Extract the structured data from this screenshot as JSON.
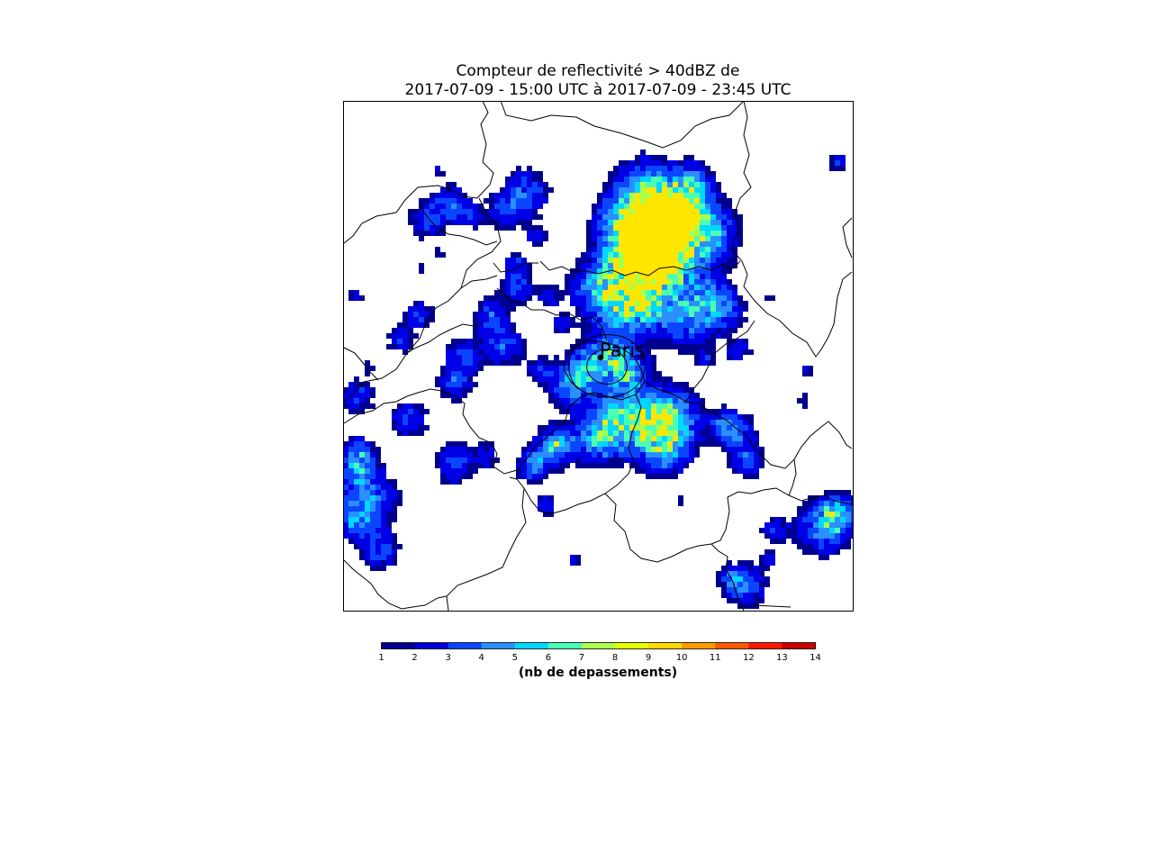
{
  "figure": {
    "title_line_1": "Compteur de reflectivité > 40dBZ de",
    "title_line_2": "2017-07-09 - 15:00 UTC à 2017-07-09 - 23:45 UTC"
  },
  "map": {
    "city_label": "Paris",
    "cell_colors": [
      "#00008f",
      "#0000e6",
      "#0a46ff",
      "#2a8fff",
      "#00d8ff",
      "#4affb4",
      "#aaff4a",
      "#ffe600"
    ]
  },
  "colorbar": {
    "label": "(nb de depassements)",
    "ticks": [
      "1",
      "2",
      "3",
      "4",
      "5",
      "6",
      "7",
      "8",
      "9",
      "10",
      "11",
      "12",
      "13",
      "14"
    ],
    "colors": [
      "#00008f",
      "#0000d9",
      "#0a46ff",
      "#2a8fff",
      "#00d8ff",
      "#4affb4",
      "#aaff4a",
      "#e6ff00",
      "#ffd800",
      "#ff9a00",
      "#ff5a00",
      "#ff1800",
      "#c80000",
      "#800000"
    ]
  }
}
